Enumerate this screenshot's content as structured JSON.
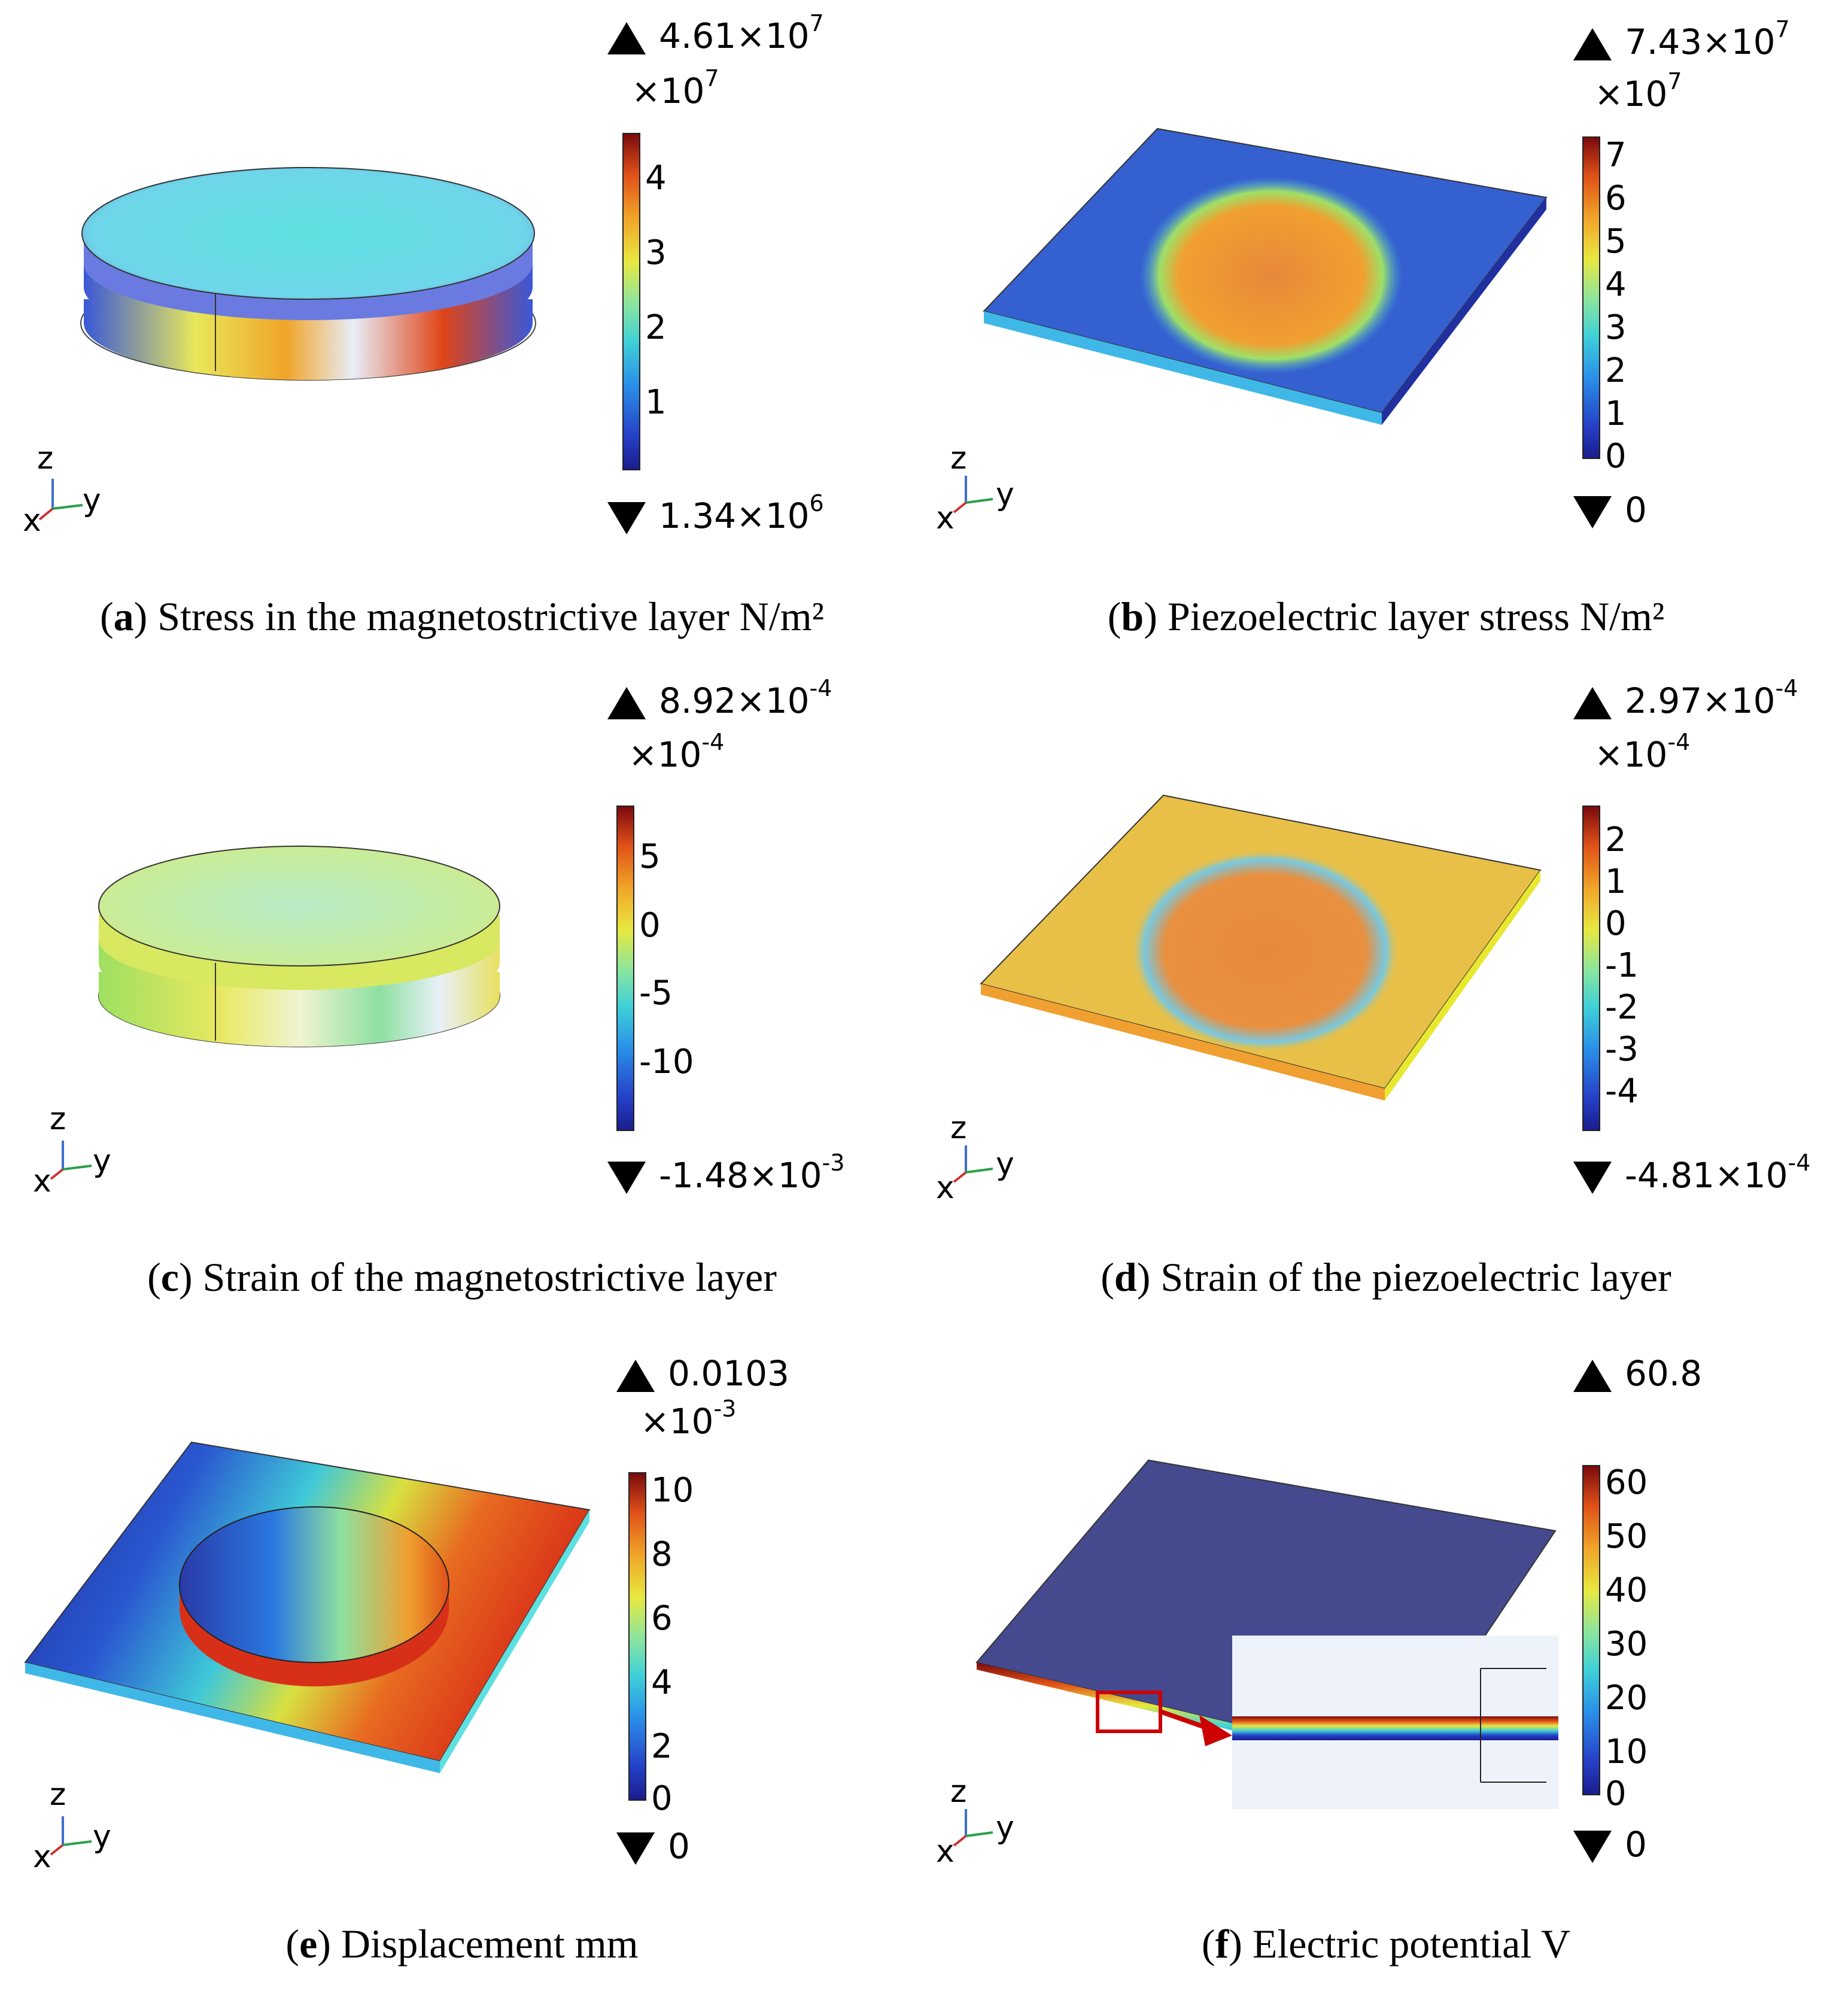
{
  "panels": [
    {
      "letter": "a",
      "caption": "Stress in the magnetostrictive layer N/m²",
      "max": {
        "mantissa": "4.61×10",
        "exp": "7"
      },
      "min": {
        "mantissa": "1.34×10",
        "exp": "6"
      },
      "multiplier": {
        "base": "×10",
        "exp": "7"
      },
      "ticks": [
        "4",
        "3",
        "2",
        "1"
      ]
    },
    {
      "letter": "b",
      "caption": "Piezoelectric layer stress N/m²",
      "max": {
        "mantissa": "7.43×10",
        "exp": "7"
      },
      "min": {
        "mantissa": "0",
        "exp": ""
      },
      "multiplier": {
        "base": "×10",
        "exp": "7"
      },
      "ticks": [
        "7",
        "6",
        "5",
        "4",
        "3",
        "2",
        "1",
        "0"
      ]
    },
    {
      "letter": "c",
      "caption": "Strain of the magnetostrictive layer",
      "max": {
        "mantissa": "8.92×10",
        "exp": "-4"
      },
      "min": {
        "mantissa": "-1.48×10",
        "exp": "-3"
      },
      "multiplier": {
        "base": "×10",
        "exp": "-4"
      },
      "ticks": [
        "5",
        "0",
        "-5",
        "-10"
      ]
    },
    {
      "letter": "d",
      "caption": "Strain of the piezoelectric layer",
      "max": {
        "mantissa": "2.97×10",
        "exp": "-4"
      },
      "min": {
        "mantissa": "-4.81×10",
        "exp": "-4"
      },
      "multiplier": {
        "base": "×10",
        "exp": "-4"
      },
      "ticks": [
        "2",
        "1",
        "0",
        "-1",
        "-2",
        "-3",
        "-4"
      ]
    },
    {
      "letter": "e",
      "caption": "Displacement mm",
      "max": {
        "mantissa": "0.0103",
        "exp": ""
      },
      "min": {
        "mantissa": "0",
        "exp": ""
      },
      "multiplier": {
        "base": "×10",
        "exp": "-3"
      },
      "ticks": [
        "10",
        "8",
        "6",
        "4",
        "2",
        "0"
      ]
    },
    {
      "letter": "f",
      "caption": "Electric potential V",
      "max": {
        "mantissa": "60.8",
        "exp": ""
      },
      "min": {
        "mantissa": "0",
        "exp": ""
      },
      "multiplier": null,
      "ticks": [
        "60",
        "50",
        "40",
        "30",
        "20",
        "10",
        "0"
      ]
    }
  ],
  "axes_labels": {
    "z": "z",
    "x": "x",
    "y": "y"
  },
  "colors": {
    "colormap": [
      "#1a1d8c",
      "#2540c8",
      "#2a8fe8",
      "#3fd0d8",
      "#8fe69a",
      "#e8e840",
      "#f0a428",
      "#e05018",
      "#7a0a0c"
    ],
    "highlight_box": "#cc0000"
  }
}
